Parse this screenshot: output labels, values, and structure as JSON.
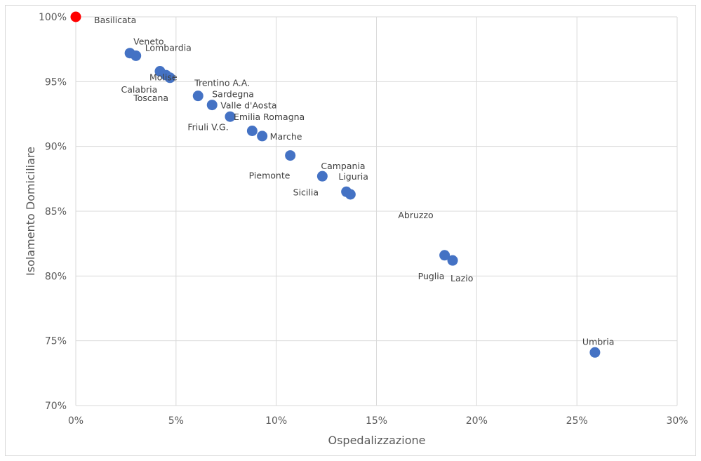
{
  "chart_data": {
    "type": "scatter",
    "title": "",
    "xlabel": "Ospedalizzazione",
    "ylabel": "Isolamento Domiciliare",
    "xlim": [
      0,
      30
    ],
    "ylim": [
      70,
      100
    ],
    "x_ticks": [
      "0%",
      "5%",
      "10%",
      "15%",
      "20%",
      "25%",
      "30%"
    ],
    "y_ticks": [
      "70%",
      "75%",
      "80%",
      "85%",
      "90%",
      "95%",
      "100%"
    ],
    "grid": true,
    "colors": {
      "default": "#4472c4",
      "highlight": "#ff0000",
      "highlight_label": "#e00000"
    },
    "points": [
      {
        "label": "Basilicata",
        "x": 0.0,
        "y": 100.0,
        "highlight": true
      },
      {
        "label": "Veneto",
        "x": 2.7,
        "y": 97.2
      },
      {
        "label": "Lombardia",
        "x": 3.0,
        "y": 97.0
      },
      {
        "label": "Molise",
        "x": 4.2,
        "y": 95.8
      },
      {
        "label": "Calabria",
        "x": 4.5,
        "y": 95.5
      },
      {
        "label": "Toscana",
        "x": 4.7,
        "y": 95.3
      },
      {
        "label": "Trentino A.A.",
        "x": 6.1,
        "y": 93.9
      },
      {
        "label": "Sardegna",
        "x": 6.8,
        "y": 93.2
      },
      {
        "label": "Valle d'Aosta",
        "x": 6.8,
        "y": 93.2
      },
      {
        "label": "Emilia Romagna",
        "x": 7.7,
        "y": 92.3
      },
      {
        "label": "Friuli V.G.",
        "x": 8.8,
        "y": 91.2
      },
      {
        "label": "Marche",
        "x": 9.3,
        "y": 90.8
      },
      {
        "label": "Piemonte",
        "x": 10.7,
        "y": 89.3
      },
      {
        "label": "Campania",
        "x": 12.3,
        "y": 87.7
      },
      {
        "label": "Abruzzo",
        "x": 12.3,
        "y": 87.7
      },
      {
        "label": "Sicilia",
        "x": 13.5,
        "y": 86.5
      },
      {
        "label": "Liguria",
        "x": 13.7,
        "y": 86.3
      },
      {
        "label": "Puglia",
        "x": 18.4,
        "y": 81.6
      },
      {
        "label": "Lazio",
        "x": 18.8,
        "y": 81.2
      },
      {
        "label": "Umbria",
        "x": 25.9,
        "y": 74.1
      }
    ]
  }
}
